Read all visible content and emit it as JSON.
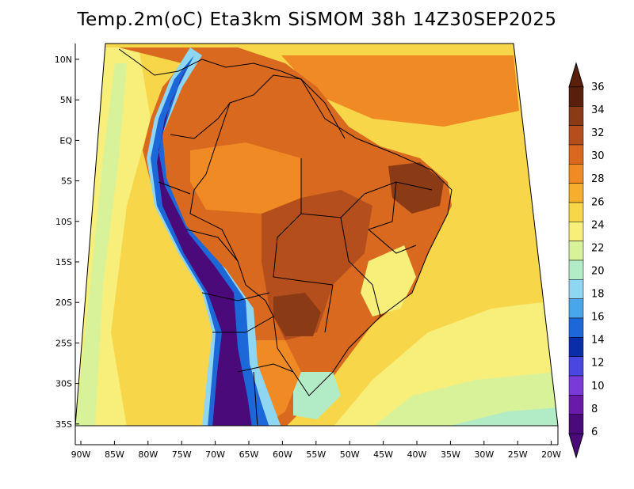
{
  "title": "Temp.2m(oC) Eta3km SiSMOM 38h 14Z30SEP2025",
  "lat_labels": [
    "10N",
    "5N",
    "EQ",
    "5S",
    "10S",
    "15S",
    "20S",
    "25S",
    "30S",
    "35S"
  ],
  "lon_labels": [
    "90W",
    "85W",
    "80W",
    "75W",
    "70W",
    "65W",
    "60W",
    "55W",
    "50W",
    "45W",
    "40W",
    "35W",
    "30W",
    "25W",
    "20W"
  ],
  "colorbar": {
    "labels": [
      "36",
      "34",
      "32",
      "30",
      "28",
      "26",
      "24",
      "22",
      "20",
      "18",
      "16",
      "14",
      "12",
      "10",
      "8",
      "6"
    ],
    "colors": [
      "#5a1e0c",
      "#8b3a16",
      "#b44e1c",
      "#d8691e",
      "#ef8a24",
      "#f6ae2f",
      "#f8d649",
      "#f8ef7a",
      "#d8f29a",
      "#b2ecc6",
      "#8fd6f2",
      "#4aa6ea",
      "#1c68d8",
      "#0a2ea8",
      "#4848e0",
      "#7a3ad8",
      "#6a1aa8",
      "#4a0a7a"
    ],
    "top_color": "#5a1e0c",
    "bottom_color": "#4a0a7a"
  },
  "map_colors": {
    "ocean_warm": "#f8d649",
    "ocean_mid": "#f8ef7a",
    "ocean_cool": "#d8f29a",
    "ocean_pale": "#b2ecc6",
    "land_hot": "#d8691e",
    "land_very_hot": "#b44e1c",
    "land_extreme": "#8b3a16",
    "land_warm": "#ef8a24",
    "andes_cold": "#4a0a7a",
    "andes_blue": "#1c68d8",
    "andes_cyan": "#8fd6f2",
    "border_line": "#000000"
  }
}
